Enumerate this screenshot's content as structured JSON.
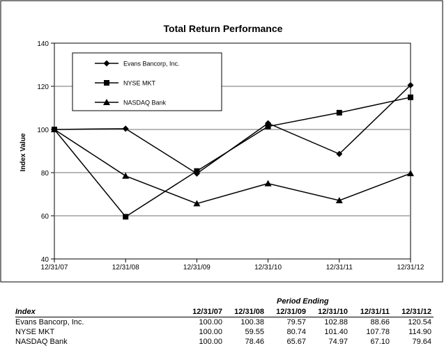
{
  "chart_data": {
    "type": "line",
    "title": "Total Return Performance",
    "xlabel": "",
    "ylabel": "Index Value",
    "categories": [
      "12/31/07",
      "12/31/08",
      "12/31/09",
      "12/31/10",
      "12/31/11",
      "12/31/12"
    ],
    "ylim": [
      40,
      140
    ],
    "yticks": [
      40,
      60,
      80,
      100,
      120,
      140
    ],
    "grid": true,
    "legend": "top-left",
    "series": [
      {
        "name": "Evans Bancorp, Inc.",
        "marker": "diamond",
        "values": [
          100.0,
          100.38,
          79.57,
          102.88,
          88.66,
          120.54
        ]
      },
      {
        "name": "NYSE MKT",
        "marker": "square",
        "values": [
          100.0,
          59.55,
          80.74,
          101.4,
          107.78,
          114.9
        ]
      },
      {
        "name": "NASDAQ Bank",
        "marker": "triangle",
        "values": [
          100.0,
          78.46,
          65.67,
          74.97,
          67.1,
          79.64
        ]
      }
    ]
  },
  "table": {
    "period_label": "Period Ending",
    "index_header": "Index",
    "columns": [
      "12/31/07",
      "12/31/08",
      "12/31/09",
      "12/31/10",
      "12/31/11",
      "12/31/12"
    ],
    "rows": [
      {
        "name": "Evans Bancorp, Inc.",
        "values": [
          "100.00",
          "100.38",
          "79.57",
          "102.88",
          "88.66",
          "120.54"
        ]
      },
      {
        "name": "NYSE MKT",
        "values": [
          "100.00",
          "59.55",
          "80.74",
          "101.40",
          "107.78",
          "114.90"
        ]
      },
      {
        "name": "NASDAQ Bank",
        "values": [
          "100.00",
          "78.46",
          "65.67",
          "74.97",
          "67.10",
          "79.64"
        ]
      }
    ]
  }
}
